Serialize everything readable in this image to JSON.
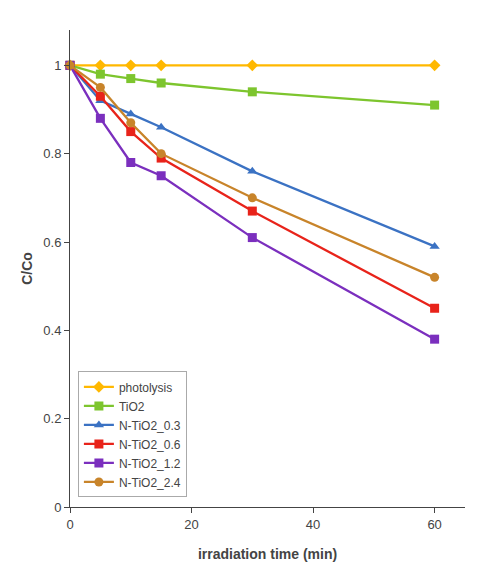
{
  "chart_data": {
    "type": "line",
    "x_label": "irradiation time (min)",
    "y_label": "C/Co",
    "x": [
      0,
      5,
      10,
      15,
      30,
      60
    ],
    "series": [
      {
        "name": "photolysis",
        "color": "#FFB800",
        "marker": "diamond",
        "values": [
          1.0,
          1.0,
          1.0,
          1.0,
          1.0,
          1.0
        ]
      },
      {
        "name": "TiO2",
        "color": "#7DC52E",
        "marker": "square",
        "values": [
          1.0,
          0.98,
          0.97,
          0.96,
          0.94,
          0.91
        ]
      },
      {
        "name": "N-TiO2_0.3",
        "color": "#3B72C3",
        "marker": "triangle-up",
        "values": [
          1.0,
          0.92,
          0.89,
          0.86,
          0.76,
          0.59
        ]
      },
      {
        "name": "N-TiO2_0.6",
        "color": "#E8231A",
        "marker": "square",
        "values": [
          1.0,
          0.93,
          0.85,
          0.79,
          0.67,
          0.45
        ]
      },
      {
        "name": "N-TiO2_1.2",
        "color": "#7B2FBE",
        "marker": "square",
        "values": [
          1.0,
          0.88,
          0.78,
          0.75,
          0.61,
          0.38
        ]
      },
      {
        "name": "N-TiO2_2.4",
        "color": "#C8842A",
        "marker": "circle",
        "values": [
          1.0,
          0.95,
          0.87,
          0.8,
          0.7,
          0.52
        ]
      }
    ],
    "xlim": [
      0,
      65
    ],
    "ylim": [
      0,
      1.08
    ],
    "xticks": [
      0,
      20,
      40,
      60
    ],
    "yticks": [
      0,
      0.2,
      0.4,
      0.6,
      0.8,
      1
    ],
    "grid": false,
    "legend": "lower left"
  }
}
